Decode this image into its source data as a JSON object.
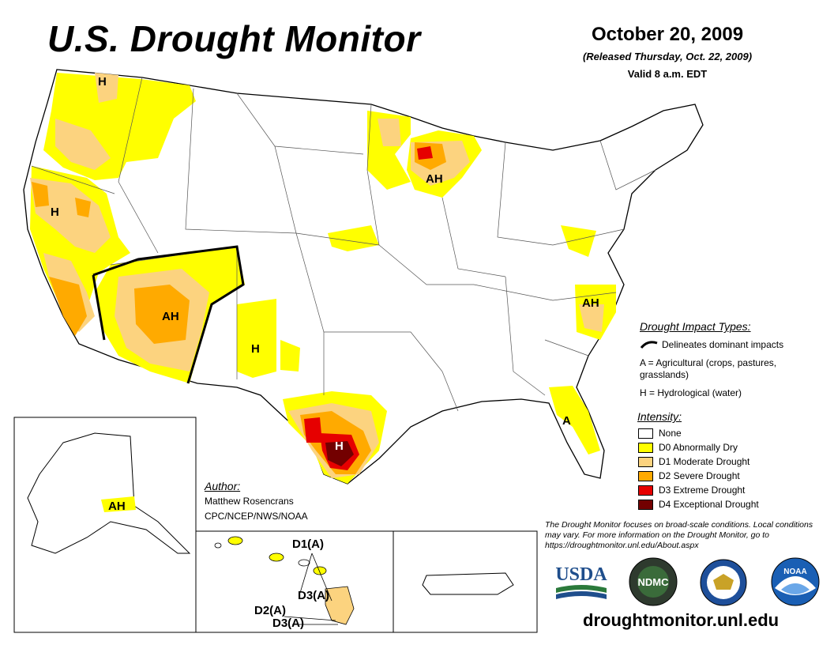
{
  "header": {
    "title": "U.S. Drought Monitor",
    "date": "October 20, 2009",
    "released": "(Released Thursday, Oct. 22, 2009)",
    "valid": "Valid 8 a.m. EDT"
  },
  "map_labels": {
    "wa_h": "H",
    "ca_h": "H",
    "sw_ah": "AH",
    "nm_h": "H",
    "tx_h": "H",
    "wi_ah": "AH",
    "nc_ah": "AH",
    "fl_a": "A",
    "ak_ah": "AH",
    "hi_d1": "D1(A)",
    "hi_d3a": "D3(A)",
    "hi_d2": "D2(A)",
    "hi_d3b": "D3(A)"
  },
  "impact": {
    "heading": "Drought Impact Types:",
    "line": "Delineates dominant impacts",
    "a": "A = Agricultural (crops, pastures, grasslands)",
    "h": "H = Hydrological (water)"
  },
  "intensity": {
    "heading": "Intensity:",
    "items": [
      {
        "label": "None",
        "color": "#ffffff"
      },
      {
        "label": "D0 Abnormally Dry",
        "color": "#ffff00"
      },
      {
        "label": "D1 Moderate Drought",
        "color": "#fcd37f"
      },
      {
        "label": "D2 Severe Drought",
        "color": "#ffaa00"
      },
      {
        "label": "D3 Extreme Drought",
        "color": "#e60000"
      },
      {
        "label": "D4 Exceptional Drought",
        "color": "#730000"
      }
    ]
  },
  "author": {
    "heading": "Author:",
    "name": "Matthew Rosencrans",
    "org": "CPC/NCEP/NWS/NOAA"
  },
  "note": "The Drought Monitor focuses on broad-scale conditions. Local conditions may vary. For more information on the Drought Monitor, go to https://droughtmonitor.unl.edu/About.aspx",
  "logos": {
    "usda": "USDA",
    "ndmc": "NDMC",
    "noaa": "NOAA"
  },
  "footer_url": "droughtmonitor.unl.edu"
}
